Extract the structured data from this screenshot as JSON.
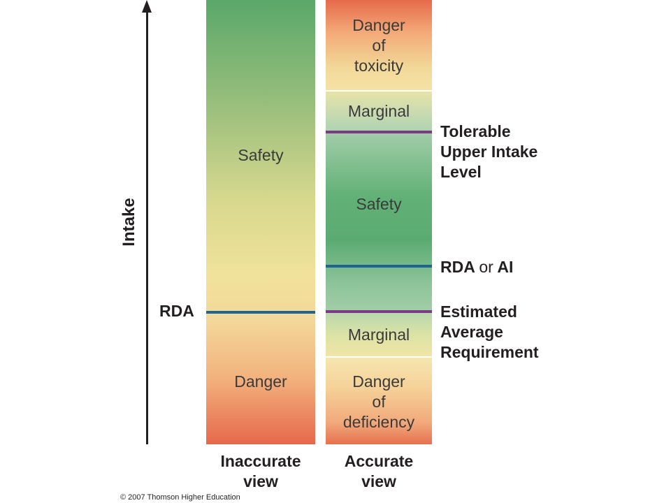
{
  "axis": {
    "label": "Intake"
  },
  "inaccurate": {
    "rda_label": "RDA",
    "safety": "Safety",
    "danger": "Danger",
    "footer": "Inaccurate\nview"
  },
  "accurate": {
    "toxicity": "Danger\nof\ntoxicity",
    "marginal_top": "Marginal",
    "safety": "Safety",
    "marginal_bottom": "Marginal",
    "deficiency": "Danger\nof\ndeficiency",
    "footer": "Accurate\nview"
  },
  "levels": {
    "ul": "Tolerable\nUpper Intake\nLevel",
    "rda_ai_bold1": "RDA",
    "rda_ai_or": "or",
    "rda_ai_bold2": "AI",
    "ear": "Estimated\nAverage\nRequirement"
  },
  "copyright": "© 2007 Thomson Higher Education",
  "colors": {
    "rda_line": "#1f6591",
    "limit_line": "#7a3b84"
  }
}
